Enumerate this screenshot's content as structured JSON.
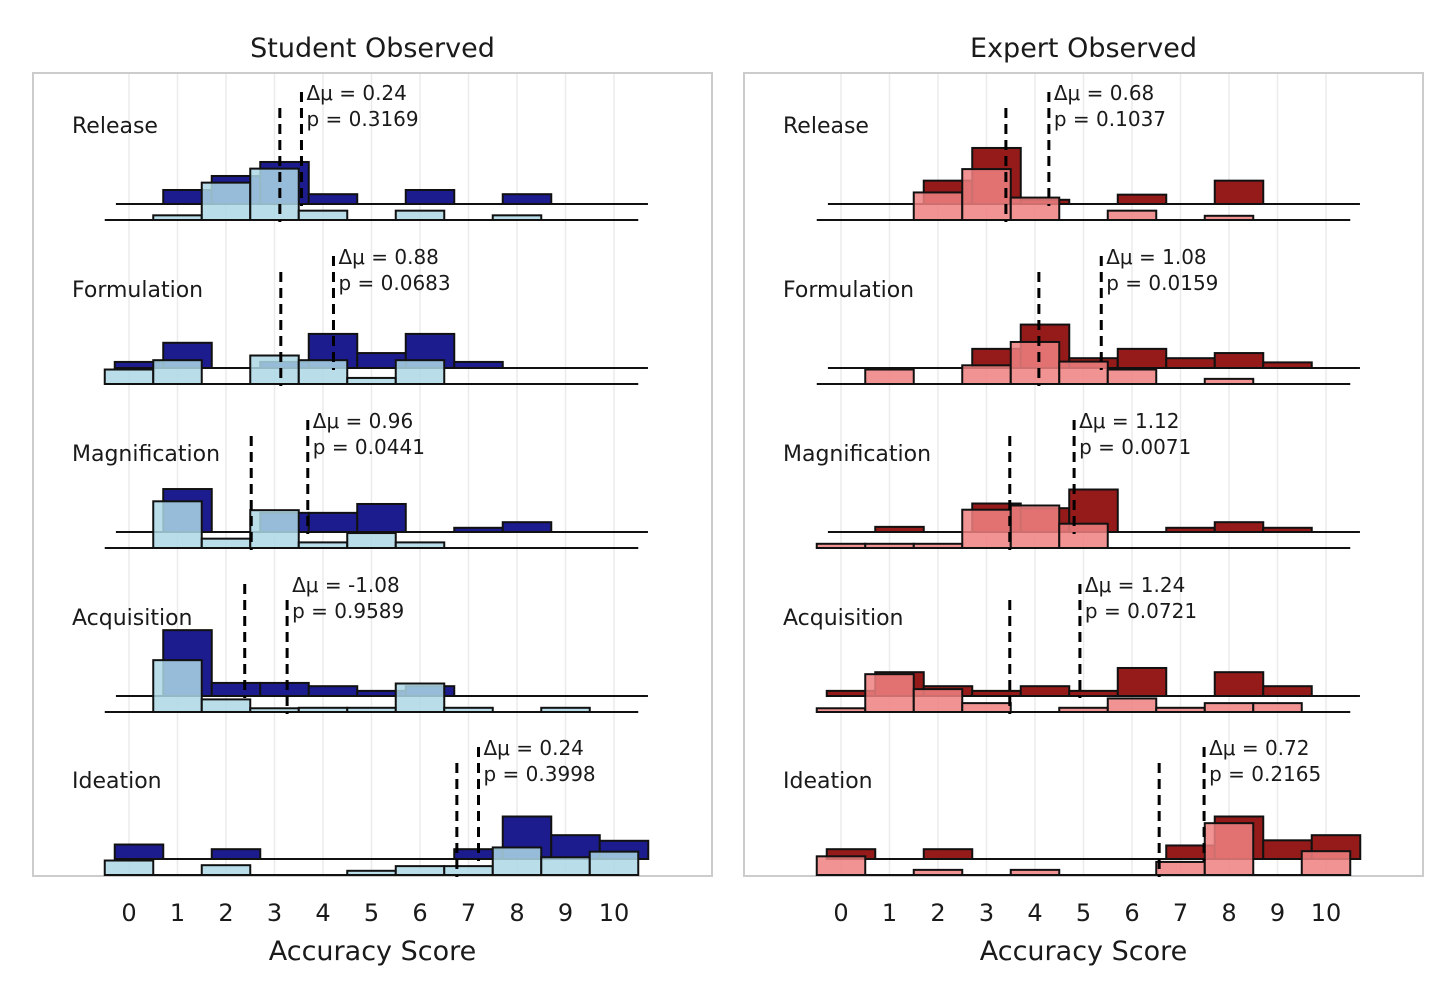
{
  "chart_data": [
    {
      "type": "bar",
      "title": "Student Observed",
      "xlabel": "Accuracy Score",
      "x_ticks": [
        0,
        1,
        2,
        3,
        4,
        5,
        6,
        7,
        8,
        9,
        10
      ],
      "xlim": [
        -0.5,
        10.5
      ],
      "grid": "vertical",
      "colors": {
        "dark": "#1c1c8f",
        "light": "#add8e6"
      },
      "rows": [
        {
          "label": "Release",
          "delta": "Δμ = 0.24",
          "p": "p = 0.3169",
          "mean_light": 3.11,
          "mean_dark": 3.35,
          "dark": [
            0,
            3,
            6,
            9,
            2.1,
            0,
            3,
            0,
            2.1,
            0,
            0
          ],
          "light": [
            0,
            1,
            8,
            11,
            2,
            0,
            2,
            0,
            1,
            0,
            0
          ]
        },
        {
          "label": "Formulation",
          "delta": "Δμ = 0.88",
          "p": "p = 0.0683",
          "mean_light": 3.13,
          "mean_dark": 4.01,
          "dark": [
            1.3,
            5.4,
            0,
            1.3,
            7.3,
            3.2,
            7.3,
            1.3,
            0,
            0,
            0
          ],
          "light": [
            3.1,
            5.1,
            0,
            6.1,
            5.1,
            1.3,
            5.1,
            0,
            0,
            0,
            0
          ]
        },
        {
          "label": "Magnification",
          "delta": "Δμ = 0.96",
          "p": "p = 0.0441",
          "mean_light": 2.52,
          "mean_dark": 3.48,
          "dark": [
            0,
            9.2,
            0,
            4.1,
            4.1,
            6.0,
            0,
            0.9,
            2.1,
            0,
            0
          ],
          "light": [
            0,
            10,
            2,
            8.1,
            1.2,
            3.2,
            1.2,
            0,
            0,
            0,
            0
          ]
        },
        {
          "label": "Acquisition",
          "delta": "Δμ = -1.08",
          "p": "p = 0.9589",
          "mean_light": 3.26,
          "mean_dark": 2.18,
          "dark": [
            0,
            14.1,
            2.8,
            2.8,
            2.1,
            1.1,
            2.1,
            0,
            0,
            0,
            0
          ],
          "light": [
            0,
            11.1,
            2.7,
            0.8,
            0.9,
            0.9,
            6.1,
            0.9,
            0,
            0.9,
            0
          ]
        },
        {
          "label": "Ideation",
          "delta": "Δμ = 0.24",
          "p": "p = 0.3998",
          "mean_light": 6.76,
          "mean_dark": 7.0,
          "dark": [
            3.1,
            0,
            2.1,
            0,
            0,
            0,
            0,
            2.1,
            9.1,
            5.1,
            3.9
          ],
          "light": [
            3.1,
            0,
            2.1,
            0,
            0,
            0.9,
            1.9,
            1.9,
            5.9,
            3.8,
            5.0
          ]
        }
      ]
    },
    {
      "type": "bar",
      "title": "Expert Observed",
      "xlabel": "Accuracy Score",
      "x_ticks": [
        0,
        1,
        2,
        3,
        4,
        5,
        6,
        7,
        8,
        9,
        10
      ],
      "xlim": [
        -0.5,
        10.5
      ],
      "grid": "vertical",
      "colors": {
        "dark": "#951b1b",
        "light": "#f08080"
      },
      "rows": [
        {
          "label": "Release",
          "delta": "Δμ = 0.68",
          "p": "p = 0.1037",
          "mean_light": 3.4,
          "mean_dark": 4.08,
          "dark": [
            0,
            0,
            5.0,
            12.0,
            0.9,
            0,
            2.0,
            0,
            5.0,
            0,
            0
          ],
          "light": [
            0,
            0,
            5.9,
            10.9,
            4.8,
            0,
            2.0,
            0,
            0.9,
            0,
            0
          ]
        },
        {
          "label": "Formulation",
          "delta": "Δμ = 1.08",
          "p": "p = 0.0159",
          "mean_light": 4.08,
          "mean_dark": 5.16,
          "dark": [
            0,
            0,
            0,
            4.1,
            9.3,
            2.1,
            4.1,
            2.1,
            3.2,
            1.2,
            0
          ],
          "light": [
            0,
            3.1,
            0,
            4.0,
            9.0,
            4.8,
            3.1,
            0,
            1.1,
            0,
            0
          ]
        },
        {
          "label": "Magnification",
          "delta": "Δμ = 1.12",
          "p": "p = 0.0071",
          "mean_light": 3.48,
          "mean_dark": 4.6,
          "dark": [
            0,
            1.1,
            0,
            6.1,
            5.1,
            9.1,
            0,
            0.9,
            2.1,
            0.9,
            0
          ],
          "light": [
            0.9,
            0.9,
            0.9,
            8.2,
            9.1,
            5.2,
            0,
            0,
            0,
            0,
            0
          ]
        },
        {
          "label": "Acquisition",
          "delta": "Δμ = 1.24",
          "p": "p = 0.0721",
          "mean_light": 3.48,
          "mean_dark": 4.72,
          "dark": [
            1.1,
            5.1,
            2.1,
            1.1,
            2.1,
            1.1,
            6.0,
            0,
            5.1,
            2.1,
            0
          ],
          "light": [
            0.8,
            8.1,
            4.9,
            1.9,
            0,
            0.9,
            2.9,
            0.9,
            1.9,
            1.9,
            0
          ]
        },
        {
          "label": "Ideation",
          "delta": "Δμ = 0.72",
          "p": "p = 0.2165",
          "mean_light": 6.56,
          "mean_dark": 7.28,
          "dark": [
            2.1,
            0,
            2.1,
            0,
            0,
            0,
            0,
            2.9,
            9.1,
            4.0,
            5.1
          ],
          "light": [
            4.0,
            0,
            1.1,
            0,
            1.1,
            0,
            0,
            2.8,
            11.1,
            0,
            5.1
          ]
        }
      ]
    }
  ]
}
